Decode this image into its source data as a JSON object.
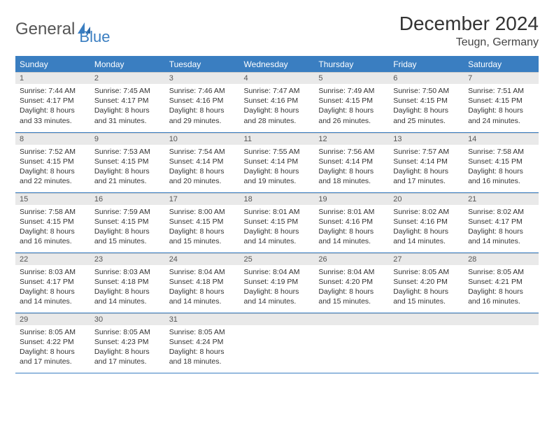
{
  "logo": {
    "word1": "General",
    "word2": "Blue"
  },
  "title": "December 2024",
  "location": "Teugn, Germany",
  "colors": {
    "header_bg": "#3a7ec1",
    "header_text": "#ffffff",
    "daynum_bg": "#e9e9e9",
    "row_border": "#3a7ec1",
    "body_text": "#333333",
    "logo_gray": "#555555",
    "logo_blue": "#3a7ec1"
  },
  "weekdays": [
    "Sunday",
    "Monday",
    "Tuesday",
    "Wednesday",
    "Thursday",
    "Friday",
    "Saturday"
  ],
  "days": [
    {
      "n": "1",
      "sr": "Sunrise: 7:44 AM",
      "ss": "Sunset: 4:17 PM",
      "d1": "Daylight: 8 hours",
      "d2": "and 33 minutes."
    },
    {
      "n": "2",
      "sr": "Sunrise: 7:45 AM",
      "ss": "Sunset: 4:17 PM",
      "d1": "Daylight: 8 hours",
      "d2": "and 31 minutes."
    },
    {
      "n": "3",
      "sr": "Sunrise: 7:46 AM",
      "ss": "Sunset: 4:16 PM",
      "d1": "Daylight: 8 hours",
      "d2": "and 29 minutes."
    },
    {
      "n": "4",
      "sr": "Sunrise: 7:47 AM",
      "ss": "Sunset: 4:16 PM",
      "d1": "Daylight: 8 hours",
      "d2": "and 28 minutes."
    },
    {
      "n": "5",
      "sr": "Sunrise: 7:49 AM",
      "ss": "Sunset: 4:15 PM",
      "d1": "Daylight: 8 hours",
      "d2": "and 26 minutes."
    },
    {
      "n": "6",
      "sr": "Sunrise: 7:50 AM",
      "ss": "Sunset: 4:15 PM",
      "d1": "Daylight: 8 hours",
      "d2": "and 25 minutes."
    },
    {
      "n": "7",
      "sr": "Sunrise: 7:51 AM",
      "ss": "Sunset: 4:15 PM",
      "d1": "Daylight: 8 hours",
      "d2": "and 24 minutes."
    },
    {
      "n": "8",
      "sr": "Sunrise: 7:52 AM",
      "ss": "Sunset: 4:15 PM",
      "d1": "Daylight: 8 hours",
      "d2": "and 22 minutes."
    },
    {
      "n": "9",
      "sr": "Sunrise: 7:53 AM",
      "ss": "Sunset: 4:15 PM",
      "d1": "Daylight: 8 hours",
      "d2": "and 21 minutes."
    },
    {
      "n": "10",
      "sr": "Sunrise: 7:54 AM",
      "ss": "Sunset: 4:14 PM",
      "d1": "Daylight: 8 hours",
      "d2": "and 20 minutes."
    },
    {
      "n": "11",
      "sr": "Sunrise: 7:55 AM",
      "ss": "Sunset: 4:14 PM",
      "d1": "Daylight: 8 hours",
      "d2": "and 19 minutes."
    },
    {
      "n": "12",
      "sr": "Sunrise: 7:56 AM",
      "ss": "Sunset: 4:14 PM",
      "d1": "Daylight: 8 hours",
      "d2": "and 18 minutes."
    },
    {
      "n": "13",
      "sr": "Sunrise: 7:57 AM",
      "ss": "Sunset: 4:14 PM",
      "d1": "Daylight: 8 hours",
      "d2": "and 17 minutes."
    },
    {
      "n": "14",
      "sr": "Sunrise: 7:58 AM",
      "ss": "Sunset: 4:15 PM",
      "d1": "Daylight: 8 hours",
      "d2": "and 16 minutes."
    },
    {
      "n": "15",
      "sr": "Sunrise: 7:58 AM",
      "ss": "Sunset: 4:15 PM",
      "d1": "Daylight: 8 hours",
      "d2": "and 16 minutes."
    },
    {
      "n": "16",
      "sr": "Sunrise: 7:59 AM",
      "ss": "Sunset: 4:15 PM",
      "d1": "Daylight: 8 hours",
      "d2": "and 15 minutes."
    },
    {
      "n": "17",
      "sr": "Sunrise: 8:00 AM",
      "ss": "Sunset: 4:15 PM",
      "d1": "Daylight: 8 hours",
      "d2": "and 15 minutes."
    },
    {
      "n": "18",
      "sr": "Sunrise: 8:01 AM",
      "ss": "Sunset: 4:15 PM",
      "d1": "Daylight: 8 hours",
      "d2": "and 14 minutes."
    },
    {
      "n": "19",
      "sr": "Sunrise: 8:01 AM",
      "ss": "Sunset: 4:16 PM",
      "d1": "Daylight: 8 hours",
      "d2": "and 14 minutes."
    },
    {
      "n": "20",
      "sr": "Sunrise: 8:02 AM",
      "ss": "Sunset: 4:16 PM",
      "d1": "Daylight: 8 hours",
      "d2": "and 14 minutes."
    },
    {
      "n": "21",
      "sr": "Sunrise: 8:02 AM",
      "ss": "Sunset: 4:17 PM",
      "d1": "Daylight: 8 hours",
      "d2": "and 14 minutes."
    },
    {
      "n": "22",
      "sr": "Sunrise: 8:03 AM",
      "ss": "Sunset: 4:17 PM",
      "d1": "Daylight: 8 hours",
      "d2": "and 14 minutes."
    },
    {
      "n": "23",
      "sr": "Sunrise: 8:03 AM",
      "ss": "Sunset: 4:18 PM",
      "d1": "Daylight: 8 hours",
      "d2": "and 14 minutes."
    },
    {
      "n": "24",
      "sr": "Sunrise: 8:04 AM",
      "ss": "Sunset: 4:18 PM",
      "d1": "Daylight: 8 hours",
      "d2": "and 14 minutes."
    },
    {
      "n": "25",
      "sr": "Sunrise: 8:04 AM",
      "ss": "Sunset: 4:19 PM",
      "d1": "Daylight: 8 hours",
      "d2": "and 14 minutes."
    },
    {
      "n": "26",
      "sr": "Sunrise: 8:04 AM",
      "ss": "Sunset: 4:20 PM",
      "d1": "Daylight: 8 hours",
      "d2": "and 15 minutes."
    },
    {
      "n": "27",
      "sr": "Sunrise: 8:05 AM",
      "ss": "Sunset: 4:20 PM",
      "d1": "Daylight: 8 hours",
      "d2": "and 15 minutes."
    },
    {
      "n": "28",
      "sr": "Sunrise: 8:05 AM",
      "ss": "Sunset: 4:21 PM",
      "d1": "Daylight: 8 hours",
      "d2": "and 16 minutes."
    },
    {
      "n": "29",
      "sr": "Sunrise: 8:05 AM",
      "ss": "Sunset: 4:22 PM",
      "d1": "Daylight: 8 hours",
      "d2": "and 17 minutes."
    },
    {
      "n": "30",
      "sr": "Sunrise: 8:05 AM",
      "ss": "Sunset: 4:23 PM",
      "d1": "Daylight: 8 hours",
      "d2": "and 17 minutes."
    },
    {
      "n": "31",
      "sr": "Sunrise: 8:05 AM",
      "ss": "Sunset: 4:24 PM",
      "d1": "Daylight: 8 hours",
      "d2": "and 18 minutes."
    }
  ]
}
